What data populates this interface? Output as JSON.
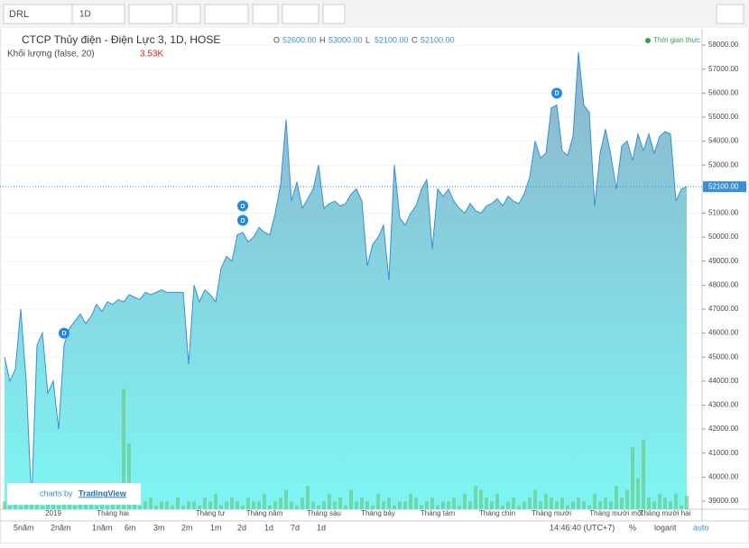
{
  "toolbar": {
    "symbol": "DRL",
    "interval": "1D"
  },
  "chart_data": {
    "type": "area",
    "title": "CTCP Thủy điện - Điện Lực 3, 1D, HOSE",
    "ohlc": [
      {
        "key": "O",
        "value": "52600.00"
      },
      {
        "key": "H",
        "value": "53000.00"
      },
      {
        "key": "L",
        "value": "52100.00"
      },
      {
        "key": "C",
        "value": "52100.00"
      }
    ],
    "volume_label": "Khối lượng (false, 20)",
    "volume_last": "3.53K",
    "realtime": "Thời gian thực",
    "color": "#3a8fd8",
    "fill_top": "#8db4cc",
    "fill_bottom": "#7ef6f3",
    "volume_color": "#6cc98c",
    "categories": [
      null,
      null,
      null,
      null,
      null,
      null,
      null,
      null,
      null,
      "2019",
      null,
      null,
      null,
      null,
      null,
      null,
      null,
      null,
      null,
      null,
      "Tháng hai",
      null,
      null,
      null,
      null,
      null,
      null,
      null,
      null,
      null,
      null,
      null,
      null,
      null,
      null,
      null,
      null,
      null,
      "Tháng tư",
      null,
      null,
      null,
      null,
      null,
      null,
      null,
      null,
      null,
      "Tháng năm",
      null,
      null,
      null,
      null,
      null,
      null,
      null,
      null,
      null,
      null,
      "Tháng sáu",
      null,
      null,
      null,
      null,
      null,
      null,
      null,
      null,
      null,
      "Tháng bảy",
      null,
      null,
      null,
      null,
      null,
      null,
      null,
      null,
      null,
      null,
      "Tháng tám",
      null,
      null,
      null,
      null,
      null,
      null,
      null,
      null,
      null,
      null,
      "Tháng chín",
      null,
      null,
      null,
      null,
      null,
      null,
      null,
      null,
      null,
      "Tháng mười",
      null,
      null,
      null,
      null,
      null,
      null,
      null,
      null,
      null,
      null,
      null,
      "Tháng mười một",
      null,
      null,
      null,
      null,
      null,
      null,
      null,
      null,
      "Tháng mười hai",
      null,
      null,
      null,
      null
    ],
    "values": [
      45000,
      44000,
      44500,
      47000,
      44000,
      39000,
      45500,
      46000,
      43500,
      44000,
      42000,
      45500,
      46200,
      46500,
      46800,
      46400,
      46700,
      47200,
      46900,
      47300,
      47200,
      47400,
      47300,
      47600,
      47500,
      47400,
      47700,
      47600,
      47700,
      47800,
      47700,
      47700,
      47700,
      47700,
      44700,
      48000,
      47300,
      47800,
      47600,
      47300,
      48700,
      49200,
      49000,
      50100,
      50200,
      49800,
      50000,
      50400,
      50200,
      50100,
      51000,
      52200,
      54900,
      51500,
      52300,
      51200,
      51600,
      52000,
      53000,
      51200,
      51400,
      51500,
      51300,
      51400,
      51800,
      52000,
      51500,
      48800,
      49700,
      50000,
      50500,
      48200,
      53000,
      50800,
      50500,
      51000,
      51300,
      52000,
      52400,
      49500,
      52000,
      51700,
      52000,
      51500,
      51200,
      51000,
      51400,
      51100,
      51000,
      51300,
      51400,
      51600,
      51300,
      51700,
      51500,
      51400,
      51800,
      52500,
      54000,
      53300,
      53500,
      55400,
      55500,
      53600,
      53400,
      54200,
      57700,
      55500,
      55200,
      51300,
      53500,
      54500,
      53400,
      52000,
      53800,
      54000,
      53200,
      54300,
      53600,
      54300,
      53500,
      54200,
      54400,
      54300,
      51500,
      52000,
      52100
    ],
    "volume": [
      2,
      1,
      3,
      1,
      2,
      4,
      2,
      1,
      3,
      2,
      1,
      2,
      3,
      1,
      2,
      2,
      3,
      1,
      2,
      1,
      2,
      3,
      31,
      17,
      2,
      1,
      2,
      3,
      1,
      2,
      2,
      1,
      3,
      1,
      2,
      2,
      1,
      3,
      2,
      4,
      1,
      2,
      3,
      2,
      1,
      3,
      2,
      2,
      4,
      1,
      2,
      3,
      5,
      2,
      1,
      3,
      6,
      2,
      1,
      2,
      4,
      2,
      3,
      1,
      5,
      2,
      3,
      2,
      1,
      4,
      2,
      3,
      1,
      2,
      2,
      4,
      3,
      1,
      2,
      3,
      1,
      2,
      2,
      3,
      1,
      4,
      2,
      6,
      5,
      3,
      2,
      4,
      1,
      2,
      3,
      1,
      2,
      3,
      5,
      2,
      4,
      3,
      2,
      3,
      1,
      2,
      3,
      2,
      1,
      4,
      2,
      3,
      2,
      6,
      3,
      5,
      16,
      8,
      18,
      3,
      2,
      4,
      3,
      2,
      4,
      1,
      3.53
    ],
    "ylim": [
      38660,
      58680
    ],
    "yticks": [
      {
        "value": 39000,
        "label": "39000.00"
      },
      {
        "value": 40000,
        "label": "40000.00"
      },
      {
        "value": 41000,
        "label": "41000.00"
      },
      {
        "value": 42000,
        "label": "42000.00"
      },
      {
        "value": 43000,
        "label": "43000.00"
      },
      {
        "value": 44000,
        "label": "44000.00"
      },
      {
        "value": 45000,
        "label": "45000.00"
      },
      {
        "value": 46000,
        "label": "46000.00"
      },
      {
        "value": 47000,
        "label": "47000.00"
      },
      {
        "value": 48000,
        "label": "48000.00"
      },
      {
        "value": 49000,
        "label": "49000.00"
      },
      {
        "value": 50000,
        "label": "50000.00"
      },
      {
        "value": 51000,
        "label": "51000.00"
      },
      {
        "value": 52000,
        "label": "52000.00"
      },
      {
        "value": 53000,
        "label": "53000.00"
      },
      {
        "value": 54000,
        "label": "54000.00"
      },
      {
        "value": 55000,
        "label": "55000.00"
      },
      {
        "value": 56000,
        "label": "56000.00"
      },
      {
        "value": 57000,
        "label": "57000.00"
      },
      {
        "value": 58000,
        "label": "58000.00"
      }
    ],
    "last_price": {
      "value": 52100,
      "label": "52100.00"
    },
    "dividends": [
      {
        "index": 11,
        "value": 46000,
        "label": "D"
      },
      {
        "index": 44,
        "value": 51300,
        "label": "D"
      },
      {
        "index": 44,
        "value": 50700,
        "label": "D"
      },
      {
        "index": 102,
        "value": 56000,
        "label": "D"
      }
    ]
  },
  "watermark": {
    "prefix": "charts by",
    "brand": "TradingView"
  },
  "bottom_bar": {
    "ranges": [
      "5năm",
      "2năm",
      "1năm",
      "6m",
      "3m",
      "2m",
      "1m",
      "2d",
      "1d",
      "7d",
      "1d"
    ],
    "clock": "14:46:40 (UTC+7)",
    "percent": "%",
    "log": "logarit",
    "auto": "auto"
  }
}
